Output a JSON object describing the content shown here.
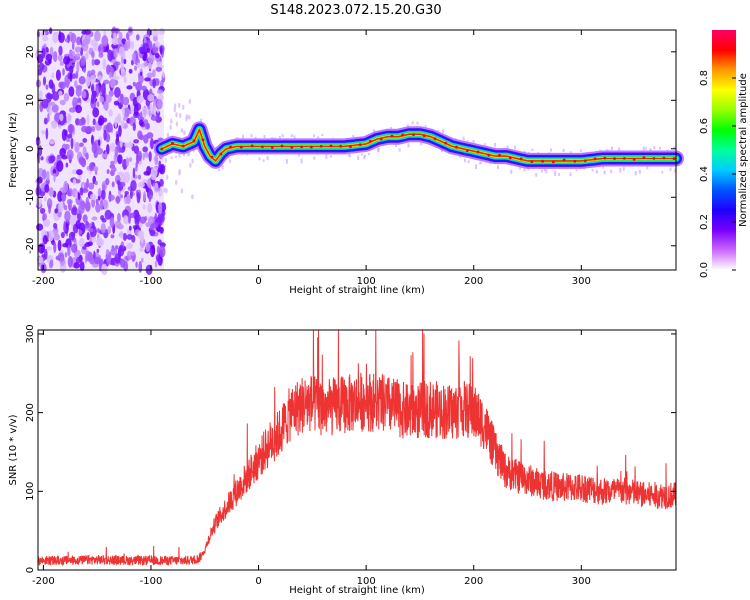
{
  "title": "S148.2023.072.15.20.G30",
  "chart_data": [
    {
      "type": "heatmap",
      "xlabel": "Height of straight line (km)",
      "ylabel": "Frequency (Hz)",
      "xlim": [
        -205,
        388
      ],
      "ylim": [
        -25,
        24.5
      ],
      "xticks": [
        -200,
        -100,
        0,
        100,
        200,
        300
      ],
      "yticks": [
        -20,
        -10,
        0,
        10,
        20
      ],
      "noise_region_x": [
        -205,
        -88
      ],
      "colorbar": {
        "label": "Normalized spectral amplitude",
        "range": [
          0,
          1
        ],
        "ticks": [
          0.0,
          0.2,
          0.4,
          0.6,
          0.8
        ],
        "colors": [
          "#ffffff",
          "#cc66ff",
          "#7700ff",
          "#1f00ff",
          "#0055ff",
          "#00ccff",
          "#00ff99",
          "#00ff00",
          "#99ff00",
          "#ffff00",
          "#ff9900",
          "#ff0000",
          "#ff0066"
        ]
      },
      "series": [
        {
          "x": [
            -90,
            -80,
            -70,
            -60,
            -55,
            -50,
            -45,
            -40,
            -35,
            -30,
            -20,
            -10,
            0,
            20,
            40,
            60,
            80,
            100,
            110,
            120,
            130,
            140,
            150,
            160,
            170,
            180,
            190,
            200,
            210,
            220,
            230,
            240,
            250,
            260,
            270,
            280,
            290,
            300,
            320,
            340,
            360,
            388
          ],
          "y": [
            0,
            1,
            0.5,
            1.5,
            4,
            0.5,
            -1.5,
            -2.5,
            -1,
            0,
            0.5,
            0.5,
            0.5,
            0.5,
            0.5,
            0.5,
            0.5,
            1,
            2,
            2.5,
            2.5,
            3,
            3,
            2.5,
            1.5,
            0.5,
            0,
            -0.5,
            -1,
            -1.5,
            -1.5,
            -2,
            -2.5,
            -2.5,
            -2.5,
            -2.5,
            -2.5,
            -2.5,
            -2,
            -2,
            -2,
            -2
          ]
        }
      ]
    },
    {
      "type": "line",
      "xlabel": "Height of straight line (km)",
      "ylabel": "SNR (10 * v/v)",
      "xlim": [
        -205,
        388
      ],
      "ylim": [
        0,
        305
      ],
      "xticks": [
        -200,
        -100,
        0,
        100,
        200,
        300
      ],
      "yticks": [
        0,
        100,
        200,
        300
      ],
      "color": "#ee3333",
      "series": [
        {
          "x": [
            -205,
            -180,
            -150,
            -120,
            -90,
            -70,
            -60,
            -55,
            -50,
            -45,
            -40,
            -30,
            -20,
            -10,
            0,
            10,
            20,
            30,
            40,
            50,
            60,
            80,
            100,
            120,
            140,
            160,
            180,
            190,
            200,
            210,
            220,
            230,
            240,
            250,
            260,
            280,
            300,
            320,
            340,
            360,
            388
          ],
          "y": [
            12,
            12,
            13,
            12,
            12,
            12,
            13,
            15,
            25,
            45,
            60,
            80,
            100,
            120,
            140,
            160,
            175,
            200,
            210,
            212,
            205,
            210,
            215,
            210,
            200,
            205,
            200,
            205,
            200,
            185,
            150,
            125,
            120,
            115,
            110,
            105,
            105,
            100,
            100,
            95,
            95
          ]
        }
      ]
    }
  ]
}
